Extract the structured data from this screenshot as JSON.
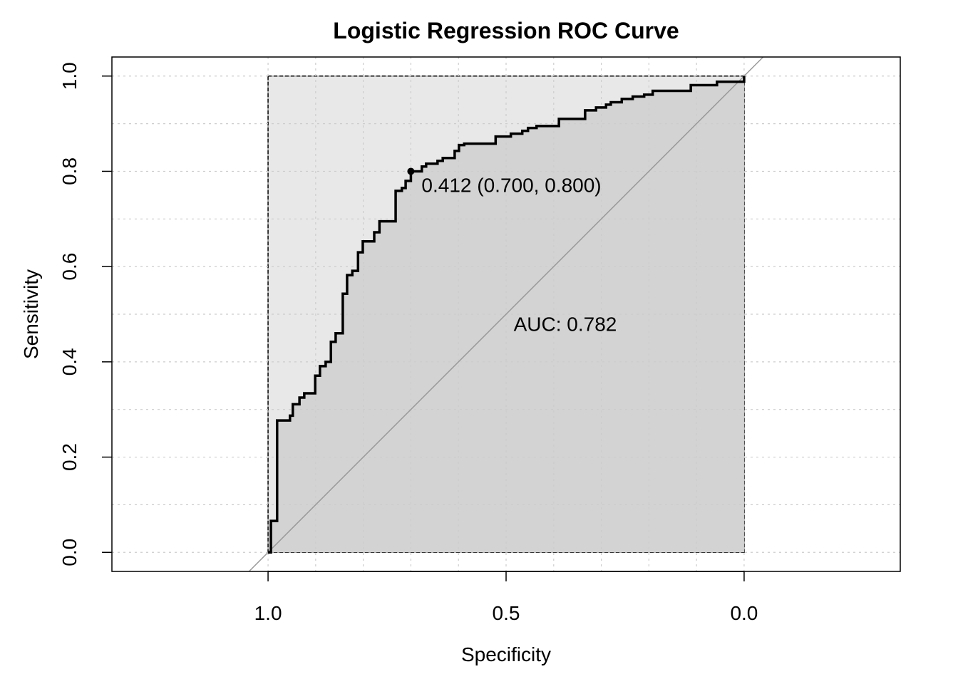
{
  "chart_data": {
    "type": "line",
    "title": "Logistic Regression ROC Curve",
    "xlabel": "Specificity",
    "ylabel": "Sensitivity",
    "xlim": [
      1.328,
      -0.328
    ],
    "ylim": [
      -0.04,
      1.04
    ],
    "x_reversed": true,
    "grid": true,
    "x_ticks": [
      1.0,
      0.5,
      0.0
    ],
    "x_tick_labels": [
      "1.0",
      "0.5",
      "0.0"
    ],
    "y_ticks": [
      0.0,
      0.2,
      0.4,
      0.6,
      0.8,
      1.0
    ],
    "y_tick_labels": [
      "0.0",
      "0.2",
      "0.4",
      "0.6",
      "0.8",
      "1.0"
    ],
    "auc_label": "AUC: 0.782",
    "auc_label_pos": [
      0.5,
      0.48
    ],
    "threshold_point": {
      "specificity": 0.7,
      "sensitivity": 0.8,
      "threshold": 0.412,
      "label": "0.412 (0.700, 0.800)"
    },
    "series": [
      {
        "name": "ROC",
        "steps": [
          [
            1.0,
            0.0
          ],
          [
            0.994,
            0.066
          ],
          [
            0.981,
            0.277
          ],
          [
            0.954,
            0.287
          ],
          [
            0.948,
            0.311
          ],
          [
            0.934,
            0.325
          ],
          [
            0.924,
            0.334
          ],
          [
            0.901,
            0.371
          ],
          [
            0.891,
            0.391
          ],
          [
            0.879,
            0.4
          ],
          [
            0.868,
            0.442
          ],
          [
            0.858,
            0.46
          ],
          [
            0.843,
            0.543
          ],
          [
            0.834,
            0.582
          ],
          [
            0.823,
            0.591
          ],
          [
            0.811,
            0.63
          ],
          [
            0.801,
            0.653
          ],
          [
            0.777,
            0.672
          ],
          [
            0.766,
            0.695
          ],
          [
            0.732,
            0.759
          ],
          [
            0.719,
            0.765
          ],
          [
            0.711,
            0.78
          ],
          [
            0.7,
            0.8
          ],
          [
            0.677,
            0.81
          ],
          [
            0.668,
            0.816
          ],
          [
            0.644,
            0.822
          ],
          [
            0.633,
            0.828
          ],
          [
            0.608,
            0.843
          ],
          [
            0.599,
            0.855
          ],
          [
            0.588,
            0.858
          ],
          [
            0.522,
            0.873
          ],
          [
            0.49,
            0.879
          ],
          [
            0.466,
            0.885
          ],
          [
            0.454,
            0.891
          ],
          [
            0.436,
            0.895
          ],
          [
            0.389,
            0.91
          ],
          [
            0.334,
            0.928
          ],
          [
            0.311,
            0.934
          ],
          [
            0.29,
            0.94
          ],
          [
            0.28,
            0.945
          ],
          [
            0.257,
            0.952
          ],
          [
            0.234,
            0.957
          ],
          [
            0.21,
            0.961
          ],
          [
            0.192,
            0.969
          ],
          [
            0.112,
            0.981
          ],
          [
            0.057,
            0.988
          ],
          [
            0.0,
            0.991
          ],
          [
            0.0,
            1.0
          ]
        ]
      }
    ],
    "colors": {
      "curve": "#000000",
      "auc_fill": "#d3d3d3",
      "max_fill": "#e8e8e8",
      "diagonal": "#999999",
      "grid": "#cccccc"
    }
  }
}
